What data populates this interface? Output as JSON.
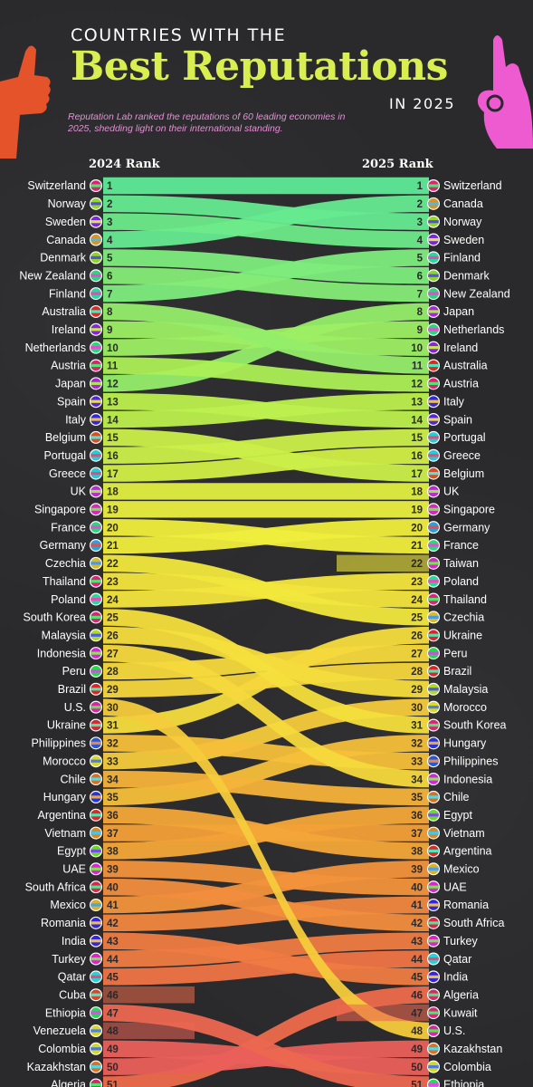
{
  "header": {
    "pre_title": "COUNTRIES WITH THE",
    "title": "Best Reputations",
    "year_label": "IN 2025",
    "subtitle": "Reputation Lab ranked the reputations of 60 leading economies in 2025, shedding light on their international standing.",
    "left_column_title": "2024 Rank",
    "right_column_title": "2025 Rank"
  },
  "chart_data": {
    "type": "bump",
    "title": "Best Reputations",
    "x": [
      "2024 Rank",
      "2025 Rank"
    ],
    "ranks_2024": [
      "Switzerland",
      "Norway",
      "Sweden",
      "Canada",
      "Denmark",
      "New Zealand",
      "Finland",
      "Australia",
      "Ireland",
      "Netherlands",
      "Austria",
      "Japan",
      "Spain",
      "Italy",
      "Belgium",
      "Portugal",
      "Greece",
      "UK",
      "Singapore",
      "France",
      "Germany",
      "Czechia",
      "Thailand",
      "Poland",
      "South Korea",
      "Malaysia",
      "Indonesia",
      "Peru",
      "Brazil",
      "U.S.",
      "Ukraine",
      "Philippines",
      "Morocco",
      "Chile",
      "Hungary",
      "Argentina",
      "Vietnam",
      "Egypt",
      "UAE",
      "South Africa",
      "Mexico",
      "Romania",
      "India",
      "Turkey",
      "Qatar",
      "Cuba",
      "Ethiopia",
      "Venezuela",
      "Colombia",
      "Kazakhstan",
      "Algeria"
    ],
    "ranks_2025": [
      "Switzerland",
      "Canada",
      "Norway",
      "Sweden",
      "Finland",
      "Denmark",
      "New Zealand",
      "Japan",
      "Netherlands",
      "Ireland",
      "Australia",
      "Austria",
      "Italy",
      "Spain",
      "Portugal",
      "Greece",
      "Belgium",
      "UK",
      "Singapore",
      "Germany",
      "France",
      "Taiwan",
      "Poland",
      "Thailand",
      "Czechia",
      "Ukraine",
      "Peru",
      "Brazil",
      "Malaysia",
      "Morocco",
      "South Korea",
      "Hungary",
      "Philippines",
      "Indonesia",
      "Chile",
      "Egypt",
      "Vietnam",
      "Argentina",
      "Mexico",
      "UAE",
      "Romania",
      "South Africa",
      "Turkey",
      "Qatar",
      "India",
      "Algeria",
      "Kuwait",
      "U.S.",
      "Kazakhstan",
      "Colombia",
      "Ethiopia"
    ]
  },
  "colors": {
    "background": "#2a2a2c",
    "title_green": "#d9ef4f",
    "subtitle_pink": "#e48fd6",
    "hand_left": "#e5532b",
    "hand_right": "#ee5bd0"
  }
}
